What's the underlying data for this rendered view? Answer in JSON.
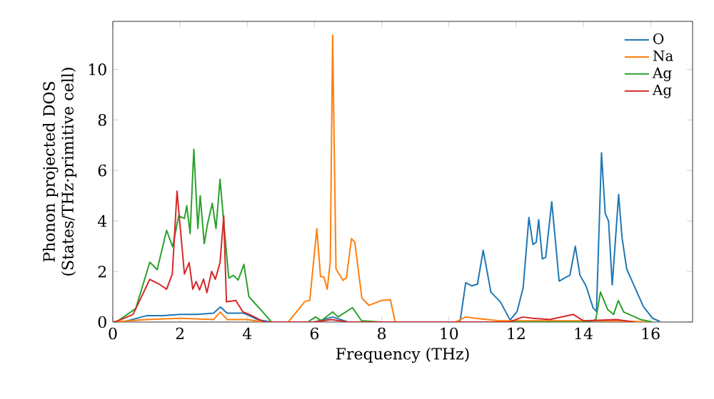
{
  "chart_data": {
    "type": "line",
    "xlabel": "Frequency (THz)",
    "ylabel": "Phonon projected DOS (States/THz·primitive cell)",
    "xlim": [
      0,
      17.25
    ],
    "ylim": [
      0,
      11.9
    ],
    "xticks": [
      0,
      2,
      4,
      6,
      8,
      10,
      12,
      14,
      16
    ],
    "yticks": [
      0,
      2,
      4,
      6,
      8,
      10
    ],
    "legend": "top right",
    "marker": "none",
    "series": [
      {
        "name": "O",
        "color": "#1f77b4",
        "x": [
          0,
          0.3,
          1.0,
          1.5,
          2.0,
          2.5,
          3.0,
          3.2,
          3.4,
          3.9,
          4.3,
          4.7,
          6.0,
          6.54,
          7.0,
          10.0,
          10.33,
          10.5,
          10.68,
          10.85,
          11.02,
          11.25,
          11.53,
          11.82,
          12.03,
          12.21,
          12.38,
          12.5,
          12.6,
          12.67,
          12.78,
          12.88,
          13.06,
          13.28,
          13.45,
          13.6,
          13.76,
          13.9,
          14.08,
          14.29,
          14.39,
          14.54,
          14.65,
          14.75,
          14.86,
          15.05,
          15.15,
          15.29,
          15.5,
          15.79,
          16.07,
          16.28
        ],
        "values": [
          0,
          0,
          0.25,
          0.25,
          0.3,
          0.3,
          0.35,
          0.6,
          0.35,
          0.35,
          0.1,
          0,
          0,
          0.2,
          0,
          0,
          0,
          1.56,
          1.43,
          1.5,
          2.84,
          1.18,
          0.8,
          0.08,
          0.42,
          1.36,
          4.14,
          3.07,
          3.16,
          4.05,
          2.5,
          2.56,
          4.76,
          1.62,
          1.75,
          1.85,
          3.0,
          1.85,
          1.43,
          0.56,
          0.42,
          6.7,
          4.3,
          4.0,
          1.47,
          5.05,
          3.35,
          2.1,
          1.47,
          0.6,
          0.14,
          0.02
        ]
      },
      {
        "name": "Na",
        "color": "#ff7f0e",
        "x": [
          0,
          1.0,
          2.0,
          3.0,
          3.2,
          3.4,
          4.0,
          4.5,
          5.22,
          5.72,
          5.86,
          6.07,
          6.18,
          6.28,
          6.38,
          6.47,
          6.54,
          6.64,
          6.85,
          6.95,
          7.1,
          7.2,
          7.41,
          7.62,
          7.98,
          8.26,
          8.4,
          10.2,
          10.5,
          10.8,
          11.5,
          12.0,
          13.0,
          14.0,
          15.0,
          16.0
        ],
        "values": [
          0,
          0.1,
          0.15,
          0.1,
          0.4,
          0.1,
          0.1,
          0,
          0,
          0.82,
          0.86,
          3.69,
          1.8,
          1.78,
          1.3,
          2.4,
          11.36,
          2.1,
          1.65,
          1.75,
          3.3,
          3.16,
          0.95,
          0.66,
          0.85,
          0.88,
          0,
          0,
          0.2,
          0.15,
          0.05,
          0.05,
          0.05,
          0.05,
          0.05,
          0
        ]
      },
      {
        "name": "Ag",
        "color": "#2ca02c",
        "x": [
          0,
          0.1,
          0.68,
          1.1,
          1.32,
          1.6,
          1.78,
          1.96,
          2.13,
          2.2,
          2.3,
          2.41,
          2.53,
          2.6,
          2.72,
          2.82,
          2.96,
          3.07,
          3.19,
          3.33,
          3.45,
          3.59,
          3.73,
          3.9,
          4.05,
          4.36,
          4.72,
          5.8,
          6.03,
          6.2,
          6.54,
          6.7,
          7.13,
          7.4,
          8.0,
          14.2,
          14.37,
          14.51,
          14.72,
          14.9,
          15.04,
          15.2,
          15.7,
          16.06
        ],
        "values": [
          0,
          0,
          0.53,
          2.37,
          2.07,
          3.63,
          2.98,
          4.2,
          4.1,
          4.6,
          3.5,
          6.84,
          3.7,
          5.0,
          3.1,
          3.9,
          4.7,
          3.7,
          5.65,
          3.5,
          1.74,
          1.85,
          1.66,
          2.28,
          1.0,
          0.55,
          0,
          0,
          0.2,
          0.05,
          0.4,
          0.2,
          0.57,
          0.05,
          0,
          0,
          0.1,
          1.19,
          0.5,
          0.3,
          0.85,
          0.4,
          0.1,
          0
        ]
      },
      {
        "name": "Ag",
        "color": "#d62728",
        "x": [
          0,
          0.16,
          0.6,
          1.1,
          1.38,
          1.6,
          1.77,
          1.91,
          2.13,
          2.27,
          2.38,
          2.48,
          2.58,
          2.7,
          2.8,
          2.94,
          3.05,
          3.19,
          3.3,
          3.38,
          3.66,
          3.87,
          4.07,
          4.5,
          6.0,
          6.5,
          7.0,
          11.8,
          12.2,
          12.5,
          13.0,
          13.7,
          14.0,
          15.0,
          15.5
        ],
        "values": [
          0,
          0.05,
          0.3,
          1.69,
          1.5,
          1.3,
          1.9,
          5.18,
          1.9,
          2.35,
          1.3,
          1.6,
          1.27,
          1.7,
          1.16,
          2.0,
          1.69,
          2.35,
          4.2,
          0.8,
          0.85,
          0.4,
          0.3,
          0,
          0,
          0.1,
          0,
          0,
          0.2,
          0.15,
          0.1,
          0.3,
          0.05,
          0.1,
          0
        ]
      }
    ]
  }
}
